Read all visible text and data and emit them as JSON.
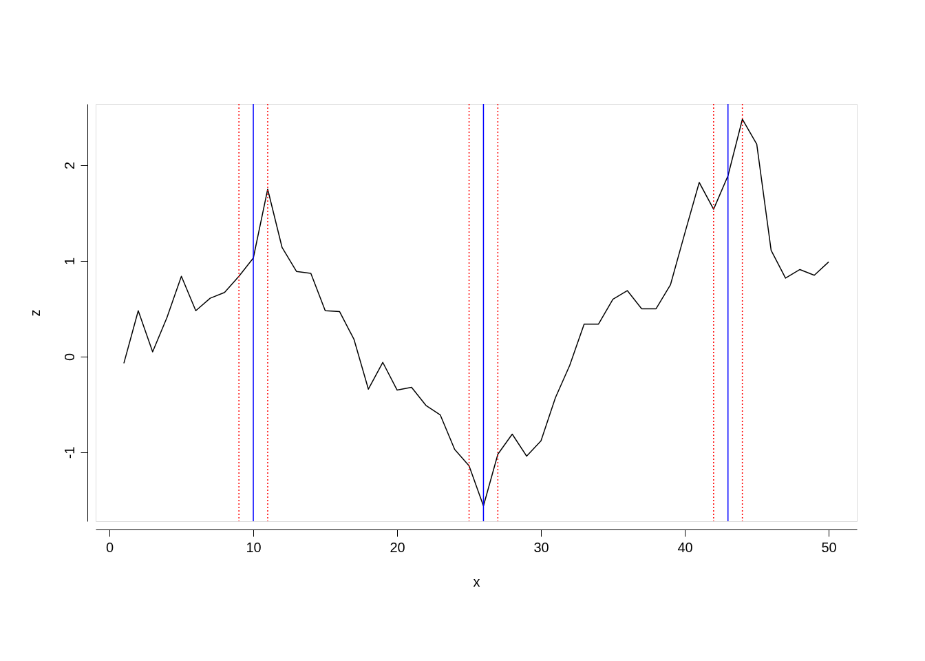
{
  "chart_data": {
    "type": "line",
    "xlabel": "x",
    "ylabel": "z",
    "x": [
      1,
      2,
      3,
      4,
      5,
      6,
      7,
      8,
      9,
      10,
      11,
      12,
      13,
      14,
      15,
      16,
      17,
      18,
      19,
      20,
      21,
      22,
      23,
      24,
      25,
      26,
      27,
      28,
      29,
      30,
      31,
      32,
      33,
      34,
      35,
      36,
      37,
      38,
      39,
      40,
      41,
      42,
      43,
      44,
      45,
      46,
      47,
      48,
      49,
      50
    ],
    "series": [
      {
        "color": "#000000",
        "values": [
          -0.07,
          0.48,
          0.05,
          0.41,
          0.84,
          0.48,
          0.61,
          0.67,
          0.84,
          1.03,
          1.75,
          1.14,
          0.89,
          0.87,
          0.48,
          0.47,
          0.18,
          -0.34,
          -0.06,
          -0.35,
          -0.32,
          -0.51,
          -0.61,
          -0.97,
          -1.14,
          -1.56,
          -1.02,
          -0.81,
          -1.04,
          -0.88,
          -0.43,
          -0.09,
          0.34,
          0.34,
          0.6,
          0.69,
          0.5,
          0.5,
          0.75,
          1.29,
          1.82,
          1.54,
          1.89,
          2.48,
          2.22,
          1.11,
          0.82,
          0.91,
          0.85,
          0.99
        ]
      }
    ],
    "xlim": [
      -0.96,
      51.96
    ],
    "ylim": [
      -1.72,
      2.64
    ],
    "xticks": [
      0,
      10,
      20,
      30,
      40,
      50
    ],
    "yticks": [
      -1,
      0,
      1,
      2
    ],
    "grid": false,
    "marker": "none",
    "line_style": "solid",
    "ref_lines": [
      {
        "axis": "x",
        "value": 10,
        "color": "#0000ff",
        "line_style": "solid"
      },
      {
        "axis": "x",
        "value": 26,
        "color": "#0000ff",
        "line_style": "solid"
      },
      {
        "axis": "x",
        "value": 43,
        "color": "#0000ff",
        "line_style": "solid"
      },
      {
        "axis": "x",
        "value": 9,
        "color": "#ff0000",
        "line_style": "dotted"
      },
      {
        "axis": "x",
        "value": 11,
        "color": "#ff0000",
        "line_style": "dotted"
      },
      {
        "axis": "x",
        "value": 25,
        "color": "#ff0000",
        "line_style": "dotted"
      },
      {
        "axis": "x",
        "value": 27,
        "color": "#ff0000",
        "line_style": "dotted"
      },
      {
        "axis": "x",
        "value": 42,
        "color": "#ff0000",
        "line_style": "dotted"
      },
      {
        "axis": "x",
        "value": 44,
        "color": "#ff0000",
        "line_style": "dotted"
      }
    ]
  }
}
